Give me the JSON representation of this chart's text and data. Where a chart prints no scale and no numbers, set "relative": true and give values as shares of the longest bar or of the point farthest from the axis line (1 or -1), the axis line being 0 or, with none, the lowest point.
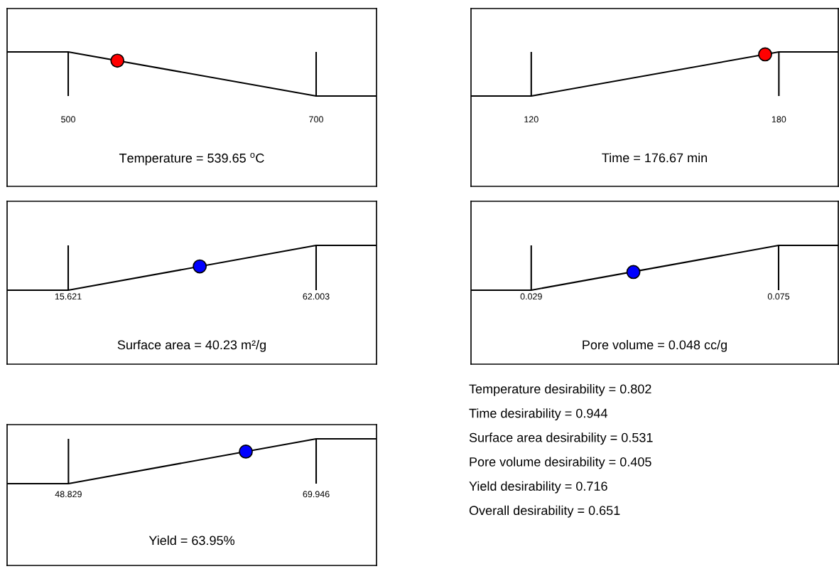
{
  "chart_data": [
    {
      "type": "line",
      "relative": true,
      "xlabel": "Temperature = 539.65 $^{o}$C",
      "xlim": [
        450.7,
        748.7
      ],
      "xticks": [
        500,
        700
      ],
      "series": [
        {
          "type": "line",
          "color": "#000000",
          "x": [
            450.7,
            500,
            700,
            748.7
          ],
          "values": [
            1,
            1,
            0,
            0
          ]
        },
        {
          "type": "scatter",
          "color": "#ff0000",
          "x": [
            539.65
          ],
          "values": [
            0.802
          ]
        }
      ]
    },
    {
      "type": "line",
      "relative": true,
      "xlabel": "Time = 176.67 min",
      "xlim": [
        105.4,
        194.4
      ],
      "xticks": [
        120,
        180
      ],
      "series": [
        {
          "type": "line",
          "color": "#000000",
          "x": [
            105.4,
            120,
            180,
            194.4
          ],
          "values": [
            0,
            0,
            1,
            1
          ]
        },
        {
          "type": "scatter",
          "color": "#ff0000",
          "x": [
            176.67
          ],
          "values": [
            0.944
          ]
        }
      ]
    },
    {
      "type": "line",
      "relative": true,
      "xlabel": "Surface area = 40.23 m²/g",
      "xlim": [
        4.19,
        73.3
      ],
      "xticks": [
        15.621,
        62.003
      ],
      "series": [
        {
          "type": "line",
          "color": "#000000",
          "x": [
            4.19,
            15.621,
            62.003,
            73.3
          ],
          "values": [
            0,
            0,
            1,
            1
          ]
        },
        {
          "type": "scatter",
          "color": "#0000ff",
          "x": [
            40.23
          ],
          "values": [
            0.531
          ]
        }
      ]
    },
    {
      "type": "line",
      "relative": true,
      "xlabel": "Pore volume = 0.048 cc/g",
      "xlim": [
        0.0178,
        0.0861
      ],
      "xticks": [
        0.029,
        0.075
      ],
      "series": [
        {
          "type": "line",
          "color": "#000000",
          "x": [
            0.0178,
            0.029,
            0.075,
            0.0861
          ],
          "values": [
            0,
            0,
            1,
            1
          ]
        },
        {
          "type": "scatter",
          "color": "#0000ff",
          "x": [
            0.048
          ],
          "values": [
            0.405
          ]
        }
      ]
    },
    {
      "type": "line",
      "relative": true,
      "xlabel": "Yield = 63.95%",
      "xlim": [
        43.6,
        75.09
      ],
      "xticks": [
        48.829,
        69.946
      ],
      "series": [
        {
          "type": "line",
          "color": "#000000",
          "x": [
            43.6,
            48.829,
            69.946,
            75.09
          ],
          "values": [
            0,
            0,
            1,
            1
          ]
        },
        {
          "type": "scatter",
          "color": "#0000ff",
          "x": [
            63.95
          ],
          "values": [
            0.716
          ]
        }
      ]
    },
    {
      "type": "other",
      "annotations": [
        "Temperature desirability = 0.802",
        "Time desirability = 0.944",
        "Surface area desirability = 0.531",
        "Pore volume desirability = 0.405",
        "Yield desirability = 0.716",
        "Overall desirability = 0.651"
      ]
    }
  ]
}
